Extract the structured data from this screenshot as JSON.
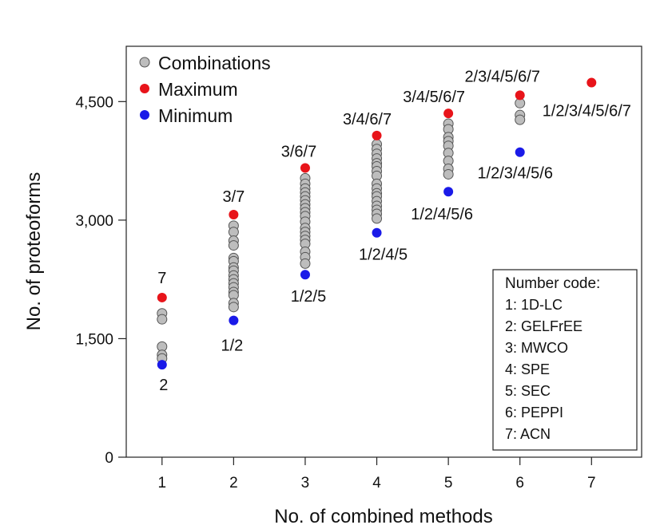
{
  "chart_data": {
    "type": "scatter",
    "xlabel": "No. of combined methods",
    "ylabel": "No. of proteoforms",
    "xlim": [
      0.5,
      7.7
    ],
    "ylim": [
      0,
      5200
    ],
    "x_ticks": [
      "1",
      "2",
      "3",
      "4",
      "5",
      "6",
      "7"
    ],
    "y_ticks": [
      {
        "value": 0,
        "label": "0"
      },
      {
        "value": 1500,
        "label": "1,500"
      },
      {
        "value": 3000,
        "label": "3,000"
      },
      {
        "value": 4500,
        "label": "4,500"
      }
    ],
    "legend": {
      "placement": "top-left",
      "entries": [
        {
          "name": "Combinations",
          "color": "#bdbdbd"
        },
        {
          "name": "Maximum",
          "color": "#e8141a"
        },
        {
          "name": "Minimum",
          "color": "#1a1ae8"
        }
      ]
    },
    "colors": {
      "combination": "#bdbdbd",
      "maximum": "#e8141a",
      "minimum": "#1a1ae8"
    },
    "series": [
      {
        "name": "Combinations",
        "points": [
          [
            1,
            1820
          ],
          [
            1,
            1745
          ],
          [
            1,
            1400
          ],
          [
            1,
            1295
          ],
          [
            1,
            1250
          ],
          [
            2,
            2930
          ],
          [
            2,
            2850
          ],
          [
            2,
            2740
          ],
          [
            2,
            2680
          ],
          [
            2,
            2520
          ],
          [
            2,
            2480
          ],
          [
            2,
            2400
          ],
          [
            2,
            2360
          ],
          [
            2,
            2300
          ],
          [
            2,
            2250
          ],
          [
            2,
            2200
          ],
          [
            2,
            2150
          ],
          [
            2,
            2090
          ],
          [
            2,
            2050
          ],
          [
            2,
            1950
          ],
          [
            2,
            1900
          ],
          [
            3,
            3530
          ],
          [
            3,
            3460
          ],
          [
            3,
            3400
          ],
          [
            3,
            3350
          ],
          [
            3,
            3300
          ],
          [
            3,
            3250
          ],
          [
            3,
            3200
          ],
          [
            3,
            3150
          ],
          [
            3,
            3100
          ],
          [
            3,
            3050
          ],
          [
            3,
            2980
          ],
          [
            3,
            2900
          ],
          [
            3,
            2850
          ],
          [
            3,
            2800
          ],
          [
            3,
            2750
          ],
          [
            3,
            2700
          ],
          [
            3,
            2600
          ],
          [
            3,
            2530
          ],
          [
            3,
            2450
          ],
          [
            4,
            3960
          ],
          [
            4,
            3900
          ],
          [
            4,
            3840
          ],
          [
            4,
            3780
          ],
          [
            4,
            3720
          ],
          [
            4,
            3680
          ],
          [
            4,
            3620
          ],
          [
            4,
            3560
          ],
          [
            4,
            3460
          ],
          [
            4,
            3400
          ],
          [
            4,
            3340
          ],
          [
            4,
            3300
          ],
          [
            4,
            3240
          ],
          [
            4,
            3180
          ],
          [
            4,
            3130
          ],
          [
            4,
            3080
          ],
          [
            4,
            3020
          ],
          [
            5,
            4220
          ],
          [
            5,
            4150
          ],
          [
            5,
            4050
          ],
          [
            5,
            4000
          ],
          [
            5,
            3940
          ],
          [
            5,
            3850
          ],
          [
            5,
            3750
          ],
          [
            5,
            3650
          ],
          [
            5,
            3580
          ],
          [
            6,
            4480
          ],
          [
            6,
            4330
          ],
          [
            6,
            4270
          ]
        ]
      },
      {
        "name": "Maximum",
        "points": [
          {
            "x": 1,
            "y": 2020,
            "label": "7"
          },
          {
            "x": 2,
            "y": 3070,
            "label": "3/7"
          },
          {
            "x": 3,
            "y": 3660,
            "label": "3/6/7"
          },
          {
            "x": 4,
            "y": 4070,
            "label": "3/4/6/7"
          },
          {
            "x": 5,
            "y": 4350,
            "label": "3/4/5/6/7"
          },
          {
            "x": 6,
            "y": 4580,
            "label": "2/3/4/5/6/7"
          },
          {
            "x": 7,
            "y": 4740,
            "label": "1/2/3/4/5/6/7"
          }
        ]
      },
      {
        "name": "Minimum",
        "points": [
          {
            "x": 1,
            "y": 1170,
            "label": "2"
          },
          {
            "x": 2,
            "y": 1730,
            "label": "1/2"
          },
          {
            "x": 3,
            "y": 2310,
            "label": "1/2/5"
          },
          {
            "x": 4,
            "y": 2840,
            "label": "1/2/4/5"
          },
          {
            "x": 5,
            "y": 3360,
            "label": "1/2/4/5/6"
          },
          {
            "x": 6,
            "y": 3860,
            "label": "1/2/3/4/5/6"
          }
        ]
      }
    ],
    "number_code": {
      "title": "Number code:",
      "items": [
        "1: 1D-LC",
        "2: GELFrEE",
        "3: MWCO",
        "4: SPE",
        "5: SEC",
        "6: PEPPI",
        "7: ACN"
      ]
    }
  }
}
